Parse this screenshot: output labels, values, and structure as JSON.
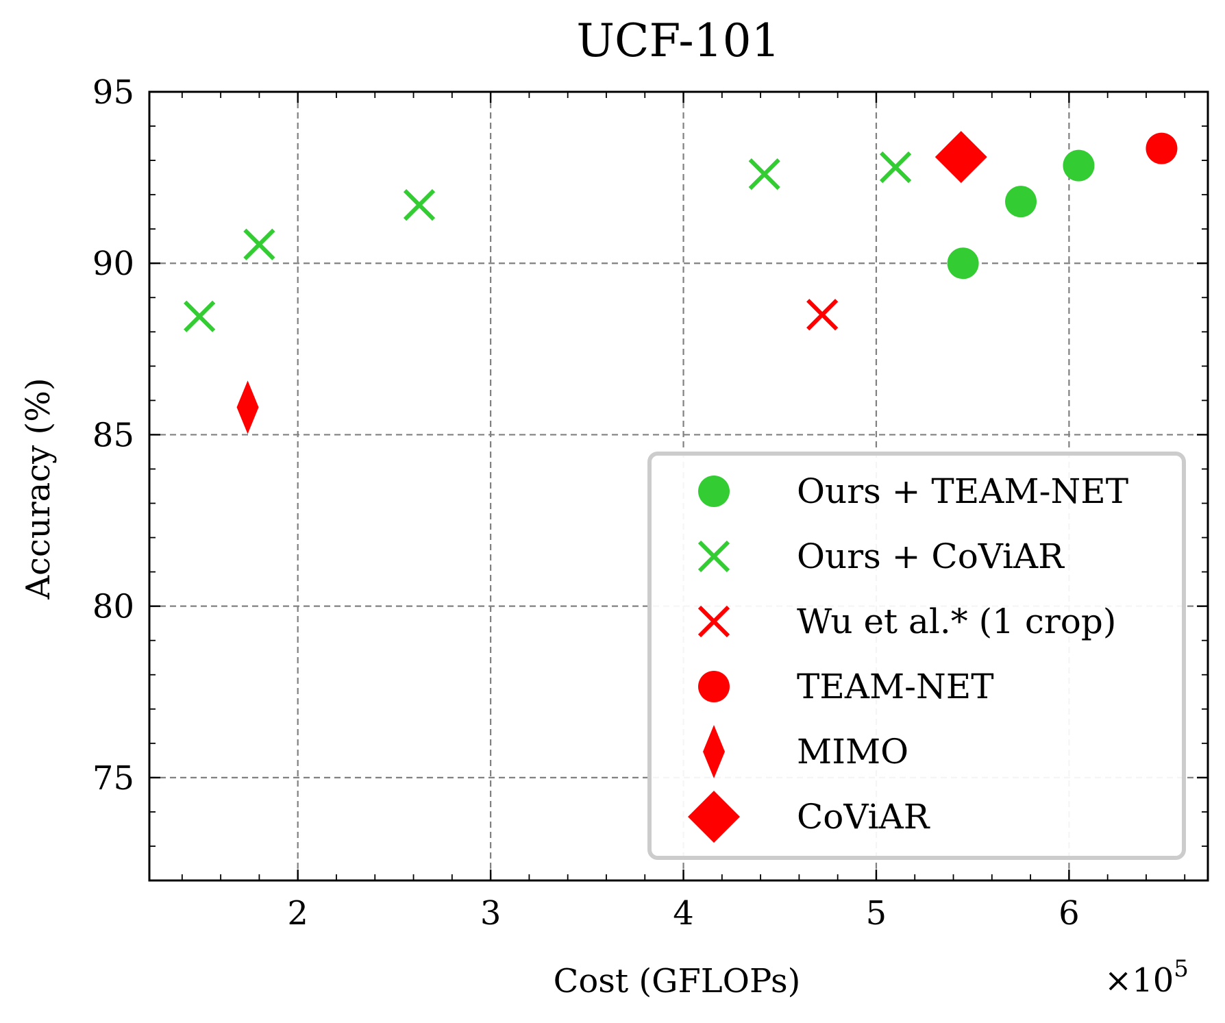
{
  "chart_data": {
    "type": "scatter",
    "title": "UCF-101",
    "xlabel": "Cost (GFLOPs)",
    "ylabel": "Accuracy (%)",
    "x_multiplier_label": "×10",
    "x_multiplier_exponent": "5",
    "xlim": [
      1.23,
      6.72
    ],
    "ylim": [
      72,
      95
    ],
    "x_ticks": [
      2,
      3,
      4,
      5,
      6
    ],
    "x_tick_labels": [
      "2",
      "3",
      "4",
      "5",
      "6"
    ],
    "y_ticks": [
      75,
      80,
      85,
      90,
      95
    ],
    "y_tick_labels": [
      "75",
      "80",
      "85",
      "90",
      "95"
    ],
    "grid": true,
    "legend_position": "lower-right",
    "series": [
      {
        "name": "Ours + TEAM-NET",
        "marker": "circle",
        "color": "#33cc33",
        "points": [
          [
            5.45,
            90.0
          ],
          [
            5.75,
            91.8
          ],
          [
            6.05,
            92.85
          ]
        ]
      },
      {
        "name": "Ours + CoViAR",
        "marker": "x",
        "color": "#33cc33",
        "points": [
          [
            1.49,
            88.45
          ],
          [
            1.8,
            90.55
          ],
          [
            2.63,
            91.7
          ],
          [
            4.42,
            92.6
          ],
          [
            5.1,
            92.8
          ]
        ]
      },
      {
        "name": "Wu et al.* (1 crop)",
        "marker": "x",
        "color": "#ff0000",
        "points": [
          [
            4.72,
            88.5
          ]
        ]
      },
      {
        "name": "TEAM-NET",
        "marker": "circle",
        "color": "#ff0000",
        "points": [
          [
            6.48,
            93.35
          ]
        ]
      },
      {
        "name": "MIMO",
        "marker": "thin-diamond",
        "color": "#ff0000",
        "points": [
          [
            1.74,
            85.8
          ]
        ]
      },
      {
        "name": "CoViAR",
        "marker": "diamond",
        "color": "#ff0000",
        "points": [
          [
            5.44,
            93.1
          ]
        ]
      }
    ]
  }
}
